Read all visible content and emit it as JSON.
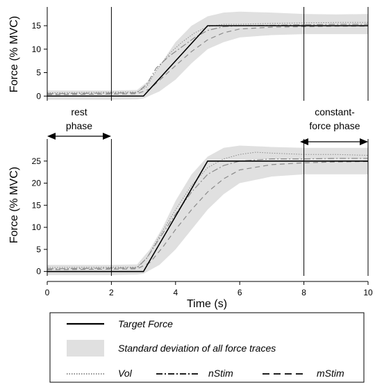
{
  "chart_data": [
    {
      "type": "line",
      "panel": "top",
      "xlim": [
        0,
        10
      ],
      "ylim": [
        -1,
        19
      ],
      "yticks": [
        0,
        5,
        10,
        15
      ],
      "ylabel": "Force (% MVC)",
      "vlines": [
        2,
        8,
        10
      ],
      "target": [
        [
          0,
          0
        ],
        [
          3,
          0
        ],
        [
          5,
          15
        ],
        [
          10,
          15
        ]
      ],
      "band": {
        "upper": [
          [
            0,
            1.2
          ],
          [
            2,
            1.2
          ],
          [
            2.8,
            1.3
          ],
          [
            3.2,
            3.5
          ],
          [
            3.6,
            7.5
          ],
          [
            4,
            11.5
          ],
          [
            4.5,
            15
          ],
          [
            5,
            17
          ],
          [
            5.5,
            17.8
          ],
          [
            6,
            18
          ],
          [
            7,
            17.8
          ],
          [
            8,
            17.5
          ],
          [
            9,
            17.4
          ],
          [
            10,
            17.5
          ]
        ],
        "lower": [
          [
            0,
            -0.8
          ],
          [
            2,
            -0.8
          ],
          [
            2.8,
            -0.7
          ],
          [
            3,
            -0.5
          ],
          [
            3.5,
            1
          ],
          [
            4,
            3.5
          ],
          [
            4.5,
            7
          ],
          [
            5,
            10
          ],
          [
            5.5,
            11.5
          ],
          [
            6,
            12.5
          ],
          [
            7,
            13
          ],
          [
            8,
            13.2
          ],
          [
            9,
            13.2
          ],
          [
            10,
            13.2
          ]
        ]
      },
      "series": [
        {
          "name": "Vol",
          "points": [
            [
              0,
              0.7
            ],
            [
              2.8,
              0.9
            ],
            [
              3.1,
              2
            ],
            [
              3.4,
              5.5
            ],
            [
              3.8,
              9
            ],
            [
              4.2,
              11.5
            ],
            [
              4.6,
              13.5
            ],
            [
              5,
              14.8
            ],
            [
              5.5,
              15.3
            ],
            [
              6,
              15.3
            ],
            [
              7,
              15.5
            ],
            [
              8,
              15.6
            ],
            [
              9,
              15.7
            ],
            [
              10,
              15.7
            ]
          ]
        },
        {
          "name": "nStim",
          "points": [
            [
              0,
              0.5
            ],
            [
              2.8,
              0.7
            ],
            [
              3.1,
              2.5
            ],
            [
              3.4,
              6
            ],
            [
              3.8,
              8.5
            ],
            [
              4.2,
              10.5
            ],
            [
              4.6,
              12.5
            ],
            [
              5,
              14
            ],
            [
              5.5,
              14.8
            ],
            [
              6,
              15
            ],
            [
              7,
              15.1
            ],
            [
              8,
              15.2
            ],
            [
              9,
              15.3
            ],
            [
              10,
              15.3
            ]
          ]
        },
        {
          "name": "mStim",
          "points": [
            [
              0,
              0.3
            ],
            [
              2.8,
              0.5
            ],
            [
              3.2,
              1.5
            ],
            [
              3.6,
              4
            ],
            [
              4,
              6.5
            ],
            [
              4.5,
              9.5
            ],
            [
              5,
              12
            ],
            [
              5.5,
              13.5
            ],
            [
              6,
              14.3
            ],
            [
              7,
              14.7
            ],
            [
              8,
              14.8
            ],
            [
              9,
              14.9
            ],
            [
              10,
              14.9
            ]
          ]
        }
      ]
    },
    {
      "type": "line",
      "panel": "bottom",
      "xlim": [
        0,
        10
      ],
      "ylim": [
        -1,
        30
      ],
      "xticks": [
        0,
        2,
        4,
        6,
        8,
        10
      ],
      "yticks": [
        0,
        5,
        10,
        15,
        20,
        25
      ],
      "xlabel": "Time (s)",
      "ylabel": "Force (% MVC)",
      "vlines": [
        2,
        8,
        10
      ],
      "target": [
        [
          0,
          0
        ],
        [
          3,
          0
        ],
        [
          5,
          25
        ],
        [
          10,
          25
        ]
      ],
      "band": {
        "upper": [
          [
            0,
            1.5
          ],
          [
            2,
            1.5
          ],
          [
            2.8,
            1.6
          ],
          [
            3.2,
            5
          ],
          [
            3.6,
            10
          ],
          [
            4,
            16
          ],
          [
            4.5,
            22
          ],
          [
            5,
            26
          ],
          [
            5.5,
            28
          ],
          [
            6,
            28.5
          ],
          [
            7,
            28.2
          ],
          [
            8,
            28
          ],
          [
            9,
            28
          ],
          [
            10,
            28
          ]
        ],
        "lower": [
          [
            0,
            -0.8
          ],
          [
            2,
            -0.8
          ],
          [
            2.8,
            -0.7
          ],
          [
            3,
            -0.5
          ],
          [
            3.5,
            1.5
          ],
          [
            4,
            5
          ],
          [
            4.5,
            9.5
          ],
          [
            5,
            14
          ],
          [
            5.5,
            17.5
          ],
          [
            6,
            20
          ],
          [
            7,
            21.5
          ],
          [
            8,
            22
          ],
          [
            9,
            22
          ],
          [
            10,
            22
          ]
        ]
      },
      "series": [
        {
          "name": "Vol",
          "points": [
            [
              0,
              0.9
            ],
            [
              2.8,
              1
            ],
            [
              3.1,
              3
            ],
            [
              3.5,
              8
            ],
            [
              4,
              14
            ],
            [
              4.5,
              19.5
            ],
            [
              5,
              23.5
            ],
            [
              5.5,
              25.5
            ],
            [
              6,
              26.5
            ],
            [
              6.5,
              27
            ],
            [
              7,
              26.8
            ],
            [
              8,
              26.5
            ],
            [
              9,
              26.5
            ],
            [
              10,
              26.3
            ]
          ]
        },
        {
          "name": "nStim",
          "points": [
            [
              0,
              0.6
            ],
            [
              2.8,
              0.8
            ],
            [
              3.1,
              3
            ],
            [
              3.5,
              7.5
            ],
            [
              4,
              13
            ],
            [
              4.5,
              18
            ],
            [
              5,
              22
            ],
            [
              5.5,
              24
            ],
            [
              6,
              25
            ],
            [
              7,
              25.5
            ],
            [
              8,
              25.5
            ],
            [
              9,
              25.6
            ],
            [
              10,
              25.6
            ]
          ]
        },
        {
          "name": "mStim",
          "points": [
            [
              0,
              0.4
            ],
            [
              2.8,
              0.6
            ],
            [
              3.2,
              2
            ],
            [
              3.6,
              5.5
            ],
            [
              4,
              9.5
            ],
            [
              4.5,
              14
            ],
            [
              5,
              18
            ],
            [
              5.5,
              21
            ],
            [
              6,
              23
            ],
            [
              7,
              24.2
            ],
            [
              8,
              24.6
            ],
            [
              9,
              24.8
            ],
            [
              10,
              24.9
            ]
          ]
        }
      ]
    }
  ],
  "annotations": {
    "rest_phase": [
      "rest",
      "phase"
    ],
    "constant_force_phase": [
      "constant-",
      "force phase"
    ]
  },
  "legend": {
    "target_force": "Target Force",
    "std_dev": "Standard deviation of all force traces",
    "vol": "Vol",
    "nstim": "nStim",
    "mstim": "mStim"
  },
  "colors": {
    "band": "#e0e0e0",
    "target": "#000000",
    "traces": "#8a8a8a",
    "axes": "#000000"
  }
}
